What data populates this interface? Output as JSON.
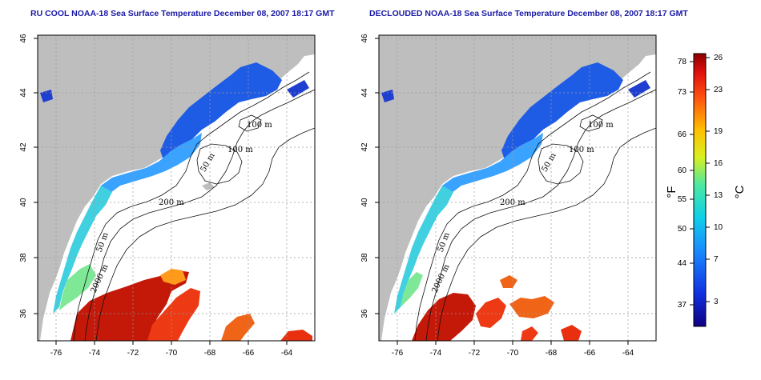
{
  "titles": {
    "left": "RU COOL NOAA-18 Sea Surface Temperature December 08, 2007 18:17 GMT",
    "right": "DECLOUDED NOAA-18 Sea Surface Temperature December 08, 2007 18:17 GMT"
  },
  "axes": {
    "lon_ticks": [
      "-76",
      "-74",
      "-72",
      "-70",
      "-68",
      "-66",
      "-64"
    ],
    "lat_ticks": [
      "46",
      "44",
      "42",
      "40",
      "38",
      "36"
    ]
  },
  "contours": {
    "left": [
      "100 m",
      "100 m",
      "50 m",
      "200 m",
      "50 m",
      "2000 m"
    ],
    "right": [
      "100 m",
      "100 m",
      "50 m",
      "200 m",
      "50 m",
      "2000 m"
    ]
  },
  "colorbar": {
    "f_ticks": [
      "78",
      "73",
      "66",
      "60",
      "55",
      "50",
      "44",
      "37"
    ],
    "c_ticks": [
      "26",
      "23",
      "19",
      "16",
      "13",
      "10",
      "7",
      "3"
    ],
    "f_unit": "°F",
    "c_unit": "°C"
  },
  "colors": {
    "land": "#bebebe",
    "title": "#1a1aa6",
    "warm": "#cc1a0a",
    "cold": "#1f55e0"
  }
}
